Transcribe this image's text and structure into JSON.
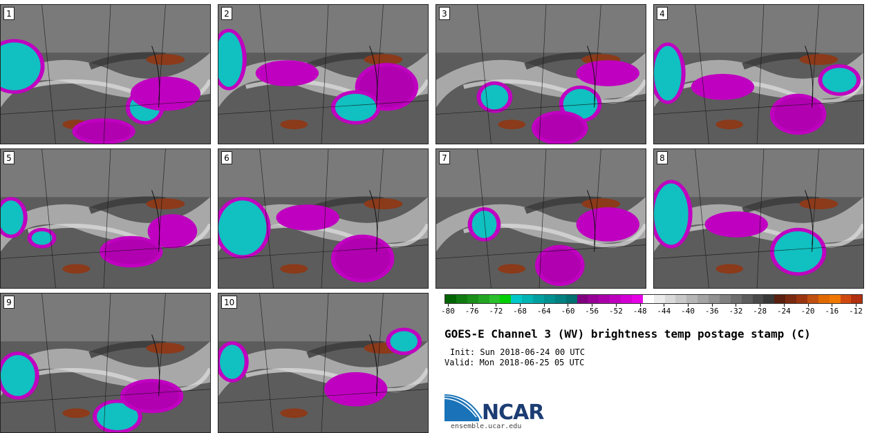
{
  "panels": [
    {
      "label": "1"
    },
    {
      "label": "2"
    },
    {
      "label": "3"
    },
    {
      "label": "4"
    },
    {
      "label": "5"
    },
    {
      "label": "6"
    },
    {
      "label": "7"
    },
    {
      "label": "8"
    },
    {
      "label": "9"
    },
    {
      "label": "10"
    }
  ],
  "colorbar": {
    "ticks": [
      "-80",
      "-76",
      "-72",
      "-68",
      "-64",
      "-60",
      "-56",
      "-52",
      "-48",
      "-44",
      "-40",
      "-36",
      "-32",
      "-28",
      "-24",
      "-20",
      "-16",
      "-12"
    ],
    "colors": [
      "#006400",
      "#117a11",
      "#1a8f1a",
      "#22a522",
      "#2cc02c",
      "#00d000",
      "#00c8c8",
      "#00b4b4",
      "#00a0a0",
      "#009090",
      "#008080",
      "#007070",
      "#800080",
      "#960096",
      "#aa00aa",
      "#be00be",
      "#d200d2",
      "#e600e6",
      "#ffffff",
      "#ececec",
      "#dadada",
      "#c8c8c8",
      "#b6b6b6",
      "#a4a4a4",
      "#929292",
      "#808080",
      "#6e6e6e",
      "#5c5c5c",
      "#4a4a4a",
      "#383838",
      "#5a2010",
      "#7a2a10",
      "#9a3510",
      "#c05010",
      "#e06a00",
      "#f07800",
      "#d04a10",
      "#b03010"
    ]
  },
  "title": "GOES-E Channel 3 (WV) brightness temp postage stamp (C)",
  "init": "Init: Sun 2018-06-24 00 UTC",
  "valid": "Valid: Mon 2018-06-25 05 UTC",
  "logo": {
    "name": "NCAR",
    "url": "ensemble.ucar.edu"
  }
}
